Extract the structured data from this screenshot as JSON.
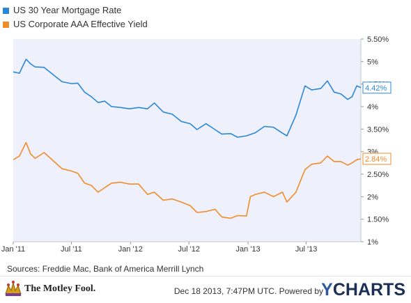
{
  "chart_data": {
    "type": "line",
    "title": "",
    "xlabel": "",
    "ylabel": "",
    "x_ticks": [
      "Jan '11",
      "Jul '11",
      "Jan '12",
      "Jul '12",
      "Jan '13",
      "Jul '13"
    ],
    "y_ticks": [
      "1%",
      "1.50%",
      "2%",
      "2.50%",
      "3%",
      "3.50%",
      "4%",
      "4.50%",
      "5%",
      "5.50%"
    ],
    "ylim": [
      1,
      5.5
    ],
    "xlim": [
      "2011-01-01",
      "2013-12-18"
    ],
    "grid": false,
    "legend_position": "top-left",
    "series": [
      {
        "name": "US 30 Year Mortgage Rate",
        "color": "#2a87d8",
        "last_label": "4.42%",
        "points": [
          [
            "2011-01-01",
            4.77
          ],
          [
            "2011-01-20",
            4.74
          ],
          [
            "2011-02-10",
            5.05
          ],
          [
            "2011-02-24",
            4.95
          ],
          [
            "2011-03-10",
            4.88
          ],
          [
            "2011-04-07",
            4.87
          ],
          [
            "2011-05-05",
            4.71
          ],
          [
            "2011-06-02",
            4.55
          ],
          [
            "2011-07-01",
            4.51
          ],
          [
            "2011-07-21",
            4.52
          ],
          [
            "2011-08-11",
            4.32
          ],
          [
            "2011-09-01",
            4.22
          ],
          [
            "2011-09-22",
            4.09
          ],
          [
            "2011-10-13",
            4.12
          ],
          [
            "2011-11-03",
            4.0
          ],
          [
            "2011-12-01",
            3.98
          ],
          [
            "2011-12-29",
            3.95
          ],
          [
            "2012-01-26",
            3.98
          ],
          [
            "2012-02-23",
            3.95
          ],
          [
            "2012-03-15",
            4.08
          ],
          [
            "2012-04-12",
            3.88
          ],
          [
            "2012-05-10",
            3.83
          ],
          [
            "2012-06-07",
            3.67
          ],
          [
            "2012-07-05",
            3.62
          ],
          [
            "2012-07-26",
            3.49
          ],
          [
            "2012-08-23",
            3.62
          ],
          [
            "2012-09-20",
            3.49
          ],
          [
            "2012-10-11",
            3.39
          ],
          [
            "2012-11-08",
            3.4
          ],
          [
            "2012-11-29",
            3.32
          ],
          [
            "2012-12-27",
            3.35
          ],
          [
            "2013-01-24",
            3.42
          ],
          [
            "2013-02-21",
            3.56
          ],
          [
            "2013-03-21",
            3.54
          ],
          [
            "2013-04-18",
            3.41
          ],
          [
            "2013-05-02",
            3.35
          ],
          [
            "2013-05-30",
            3.81
          ],
          [
            "2013-06-27",
            4.46
          ],
          [
            "2013-07-18",
            4.37
          ],
          [
            "2013-08-15",
            4.4
          ],
          [
            "2013-09-05",
            4.57
          ],
          [
            "2013-09-26",
            4.32
          ],
          [
            "2013-10-17",
            4.28
          ],
          [
            "2013-11-07",
            4.16
          ],
          [
            "2013-11-21",
            4.22
          ],
          [
            "2013-12-05",
            4.46
          ],
          [
            "2013-12-18",
            4.42
          ]
        ]
      },
      {
        "name": "US Corporate AAA Effective Yield",
        "color": "#f28c28",
        "last_label": "2.84%",
        "points": [
          [
            "2011-01-01",
            2.82
          ],
          [
            "2011-01-20",
            2.9
          ],
          [
            "2011-02-10",
            3.2
          ],
          [
            "2011-02-24",
            2.95
          ],
          [
            "2011-03-10",
            2.85
          ],
          [
            "2011-04-07",
            2.98
          ],
          [
            "2011-05-05",
            2.8
          ],
          [
            "2011-06-02",
            2.62
          ],
          [
            "2011-07-01",
            2.57
          ],
          [
            "2011-07-21",
            2.52
          ],
          [
            "2011-08-11",
            2.3
          ],
          [
            "2011-09-01",
            2.25
          ],
          [
            "2011-09-22",
            2.1
          ],
          [
            "2011-10-13",
            2.2
          ],
          [
            "2011-11-03",
            2.3
          ],
          [
            "2011-12-01",
            2.32
          ],
          [
            "2011-12-29",
            2.28
          ],
          [
            "2012-01-26",
            2.28
          ],
          [
            "2012-02-23",
            2.05
          ],
          [
            "2012-03-15",
            2.1
          ],
          [
            "2012-04-12",
            1.92
          ],
          [
            "2012-05-10",
            1.95
          ],
          [
            "2012-06-07",
            1.88
          ],
          [
            "2012-07-05",
            1.8
          ],
          [
            "2012-07-26",
            1.65
          ],
          [
            "2012-08-23",
            1.67
          ],
          [
            "2012-09-20",
            1.72
          ],
          [
            "2012-10-11",
            1.55
          ],
          [
            "2012-11-08",
            1.52
          ],
          [
            "2012-11-29",
            1.58
          ],
          [
            "2012-12-27",
            1.57
          ],
          [
            "2013-01-08",
            2.0
          ],
          [
            "2013-01-24",
            2.05
          ],
          [
            "2013-02-21",
            2.1
          ],
          [
            "2013-03-21",
            2.0
          ],
          [
            "2013-04-18",
            2.1
          ],
          [
            "2013-05-02",
            1.88
          ],
          [
            "2013-05-30",
            2.1
          ],
          [
            "2013-06-27",
            2.6
          ],
          [
            "2013-07-18",
            2.72
          ],
          [
            "2013-08-15",
            2.75
          ],
          [
            "2013-09-05",
            2.9
          ],
          [
            "2013-09-26",
            2.78
          ],
          [
            "2013-10-17",
            2.78
          ],
          [
            "2013-11-07",
            2.7
          ],
          [
            "2013-11-21",
            2.75
          ],
          [
            "2013-12-05",
            2.82
          ],
          [
            "2013-12-18",
            2.84
          ]
        ]
      }
    ]
  },
  "footer": {
    "sources": "Sources: Freddie Mac, Bank of America Merrill Lynch",
    "brand": "The Motley Fool.",
    "timestamp": "Dec 18 2013, 7:47PM UTC.  Powered by",
    "ycharts_y": "Y",
    "ycharts_rest": "CHARTS"
  }
}
